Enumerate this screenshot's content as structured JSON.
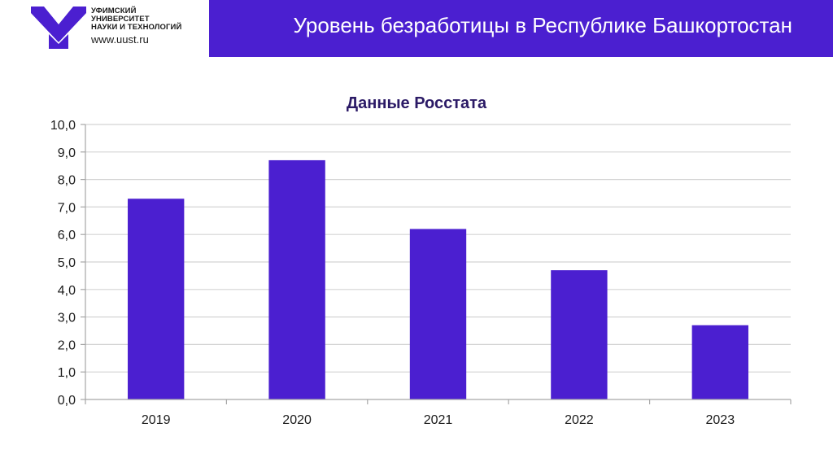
{
  "header": {
    "logo_lines": [
      "УФИМСКИЙ",
      "УНИВЕРСИТЕТ",
      "НАУКИ И ТЕХНОЛОГИЙ"
    ],
    "logo_url": "www.uust.ru",
    "title": "Уровень безработицы в Республике Башкортостан"
  },
  "colors": {
    "brand": "#4B1FD0",
    "bar": "#4B1FD0",
    "chart_title": "#2B1A66",
    "grid": "#D4D4D4",
    "axis": "#A6A6A6"
  },
  "chart_data": {
    "type": "bar",
    "title": "Данные Росстата",
    "categories": [
      "2019",
      "2020",
      "2021",
      "2022",
      "2023"
    ],
    "values": [
      7.3,
      8.7,
      6.2,
      4.7,
      2.7
    ],
    "ylim": [
      0,
      10
    ],
    "ytick_step": 1,
    "ytick_labels": [
      "0,0",
      "1,0",
      "2,0",
      "3,0",
      "4,0",
      "5,0",
      "6,0",
      "7,0",
      "8,0",
      "9,0",
      "10,0"
    ],
    "xlabel": "",
    "ylabel": "",
    "grid": true,
    "legend": "none"
  }
}
